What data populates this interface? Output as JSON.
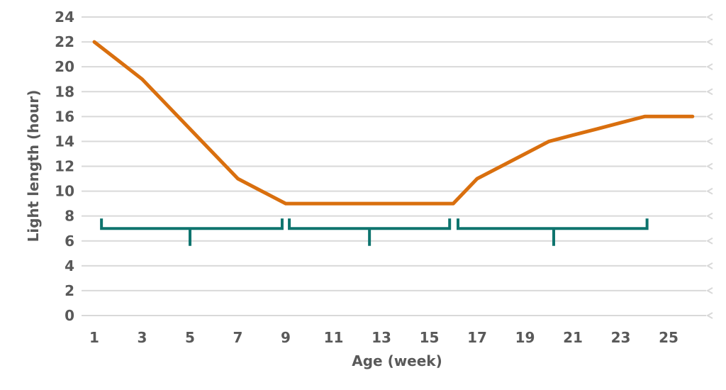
{
  "chart_data": {
    "type": "line",
    "title": "",
    "xlabel": "Age (week)",
    "ylabel": "Light length (hour)",
    "xlim": [
      0.4,
      26.7
    ],
    "ylim": [
      0,
      24
    ],
    "grid": "horizontal-only",
    "legend": "none",
    "xticks": [
      1,
      3,
      5,
      7,
      9,
      11,
      13,
      15,
      17,
      19,
      21,
      23,
      25
    ],
    "yticks": [
      0,
      2,
      4,
      6,
      8,
      10,
      12,
      14,
      16,
      18,
      20,
      22,
      24
    ],
    "x": [
      1,
      2,
      3,
      4,
      5,
      6,
      7,
      8,
      9,
      10,
      11,
      12,
      13,
      14,
      15,
      16,
      17,
      18,
      19,
      20,
      21,
      22,
      23,
      24,
      25,
      26
    ],
    "series": [
      {
        "name": "light-length",
        "color": "#D96F0E",
        "values": [
          22,
          20.5,
          19,
          17,
          15,
          13,
          11,
          10,
          9,
          9,
          9,
          9,
          9,
          9,
          9,
          9,
          11,
          12,
          13,
          14,
          14.5,
          15,
          15.5,
          16,
          16,
          16
        ]
      }
    ],
    "annotations": {
      "range_brackets": {
        "color": "#0E746E",
        "bar_y": 7.0,
        "end_tick_top_y": 7.8,
        "mid_tick_bottom_y": 5.6,
        "items": [
          {
            "name": "step-down-phase",
            "x_start": 1.3,
            "x_mid": 5.0,
            "x_end": 8.85
          },
          {
            "name": "constant-phase",
            "x_start": 9.15,
            "x_mid": 12.5,
            "x_end": 15.85
          },
          {
            "name": "step-up-phase",
            "x_start": 16.2,
            "x_mid": 20.2,
            "x_end": 24.1
          }
        ]
      }
    },
    "colors": {
      "series_orange": "#D96F0E",
      "bracket_teal": "#0E746E",
      "gridline": "#D9D9D9",
      "text": "#595959",
      "background": "#FFFFFF"
    }
  }
}
